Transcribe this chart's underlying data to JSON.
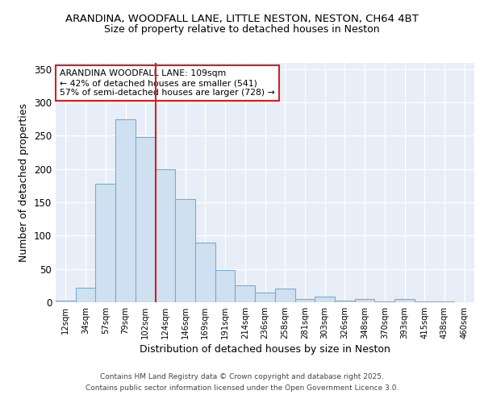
{
  "title1": "ARANDINA, WOODFALL LANE, LITTLE NESTON, NESTON, CH64 4BT",
  "title2": "Size of property relative to detached houses in Neston",
  "xlabel": "Distribution of detached houses by size in Neston",
  "ylabel": "Number of detached properties",
  "bin_labels": [
    "12sqm",
    "34sqm",
    "57sqm",
    "79sqm",
    "102sqm",
    "124sqm",
    "146sqm",
    "169sqm",
    "191sqm",
    "214sqm",
    "236sqm",
    "258sqm",
    "281sqm",
    "303sqm",
    "326sqm",
    "348sqm",
    "370sqm",
    "393sqm",
    "415sqm",
    "438sqm",
    "460sqm"
  ],
  "bar_values": [
    2,
    22,
    178,
    275,
    248,
    200,
    155,
    90,
    48,
    25,
    14,
    21,
    5,
    9,
    3,
    5,
    1,
    5,
    1,
    1,
    0
  ],
  "bar_color": "#cfe0f0",
  "bar_edge_color": "#7aabcc",
  "property_line_x": 4.5,
  "property_line_color": "#cc2222",
  "annotation_text": "ARANDINA WOODFALL LANE: 109sqm\n← 42% of detached houses are smaller (541)\n57% of semi-detached houses are larger (728) →",
  "annotation_box_color": "white",
  "annotation_box_edge_color": "#cc2222",
  "ylim": [
    0,
    360
  ],
  "yticks": [
    0,
    50,
    100,
    150,
    200,
    250,
    300,
    350
  ],
  "footer1": "Contains HM Land Registry data © Crown copyright and database right 2025.",
  "footer2": "Contains public sector information licensed under the Open Government Licence 3.0.",
  "background_color": "#ffffff",
  "plot_background_color": "#e8eef8",
  "title_fontsize": 9.5,
  "subtitle_fontsize": 9,
  "label_fontsize": 9
}
